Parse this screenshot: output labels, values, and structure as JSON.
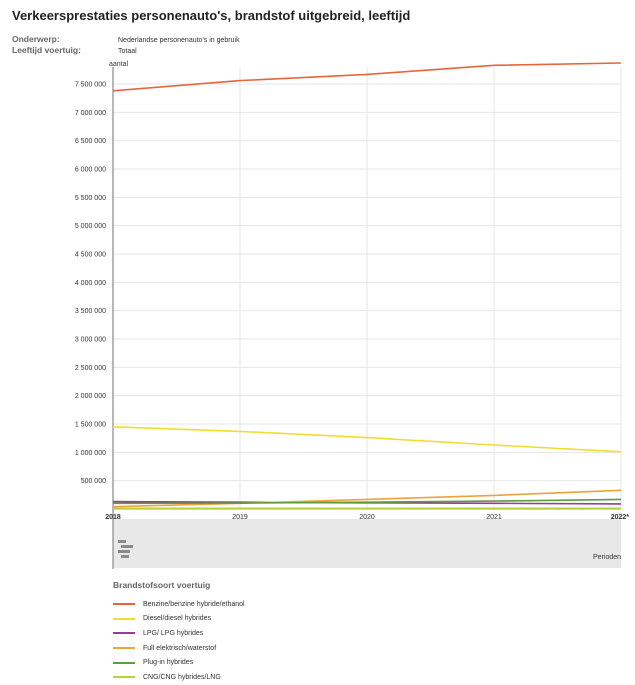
{
  "page": {
    "title": "Verkeersprestaties personenauto's, brandstof uitgebreid, leeftijd",
    "meta": [
      {
        "key": "Onderwerp:",
        "value": "Nederlandse personenauto's in gebruik"
      },
      {
        "key": "Leeftijd voertuig:",
        "value": "Totaal"
      }
    ],
    "perioden_label": "Perioden",
    "legend_title": "Brandstofsoort voertuig",
    "logo_icon": "cbs-logo-icon"
  },
  "chart_data": {
    "type": "line",
    "title": "Verkeersprestaties personenauto's, brandstof uitgebreid, leeftijd",
    "ylabel": "aantal",
    "xlabel": "Perioden",
    "x": [
      "2018",
      "2019",
      "2020",
      "2021",
      "2022*"
    ],
    "ylim": [
      0,
      7800000
    ],
    "yticks": [
      500000,
      1000000,
      1500000,
      2000000,
      2500000,
      3000000,
      3500000,
      4000000,
      4500000,
      5000000,
      5500000,
      6000000,
      6500000,
      7000000,
      7500000
    ],
    "ytick_labels": [
      "500 000",
      "1 000 000",
      "1 500 000",
      "2 000 000",
      "2 500 000",
      "3 000 000",
      "3 500 000",
      "4 000 000",
      "4 500 000",
      "5 000 000",
      "5 500 000",
      "6 000 000",
      "6 500 000",
      "7 000 000",
      "7 500 000"
    ],
    "grid": true,
    "legend_position": "bottom",
    "series": [
      {
        "name": "Benzine/benzine hybride/ethanol",
        "color": "#e8653a",
        "values": [
          7380000,
          7560000,
          7670000,
          7830000,
          7870000
        ]
      },
      {
        "name": "Diesel/diesel hybrides",
        "color": "#f2dc2e",
        "values": [
          1450000,
          1370000,
          1260000,
          1130000,
          1010000
        ]
      },
      {
        "name": "LPG/ LPG hybrides",
        "color": "#9b3a97",
        "values": [
          130000,
          120000,
          110000,
          100000,
          90000
        ]
      },
      {
        "name": "Full elektrisch/waterstof",
        "color": "#f0a23a",
        "values": [
          40000,
          100000,
          170000,
          240000,
          330000
        ]
      },
      {
        "name": "Plug-in hybrides",
        "color": "#5a9e3a",
        "values": [
          100000,
          105000,
          120000,
          140000,
          170000
        ]
      },
      {
        "name": "CNG/CNG hybrides/LNG",
        "color": "#b7d23a",
        "values": [
          12000,
          12000,
          12000,
          12000,
          12000
        ]
      }
    ]
  }
}
